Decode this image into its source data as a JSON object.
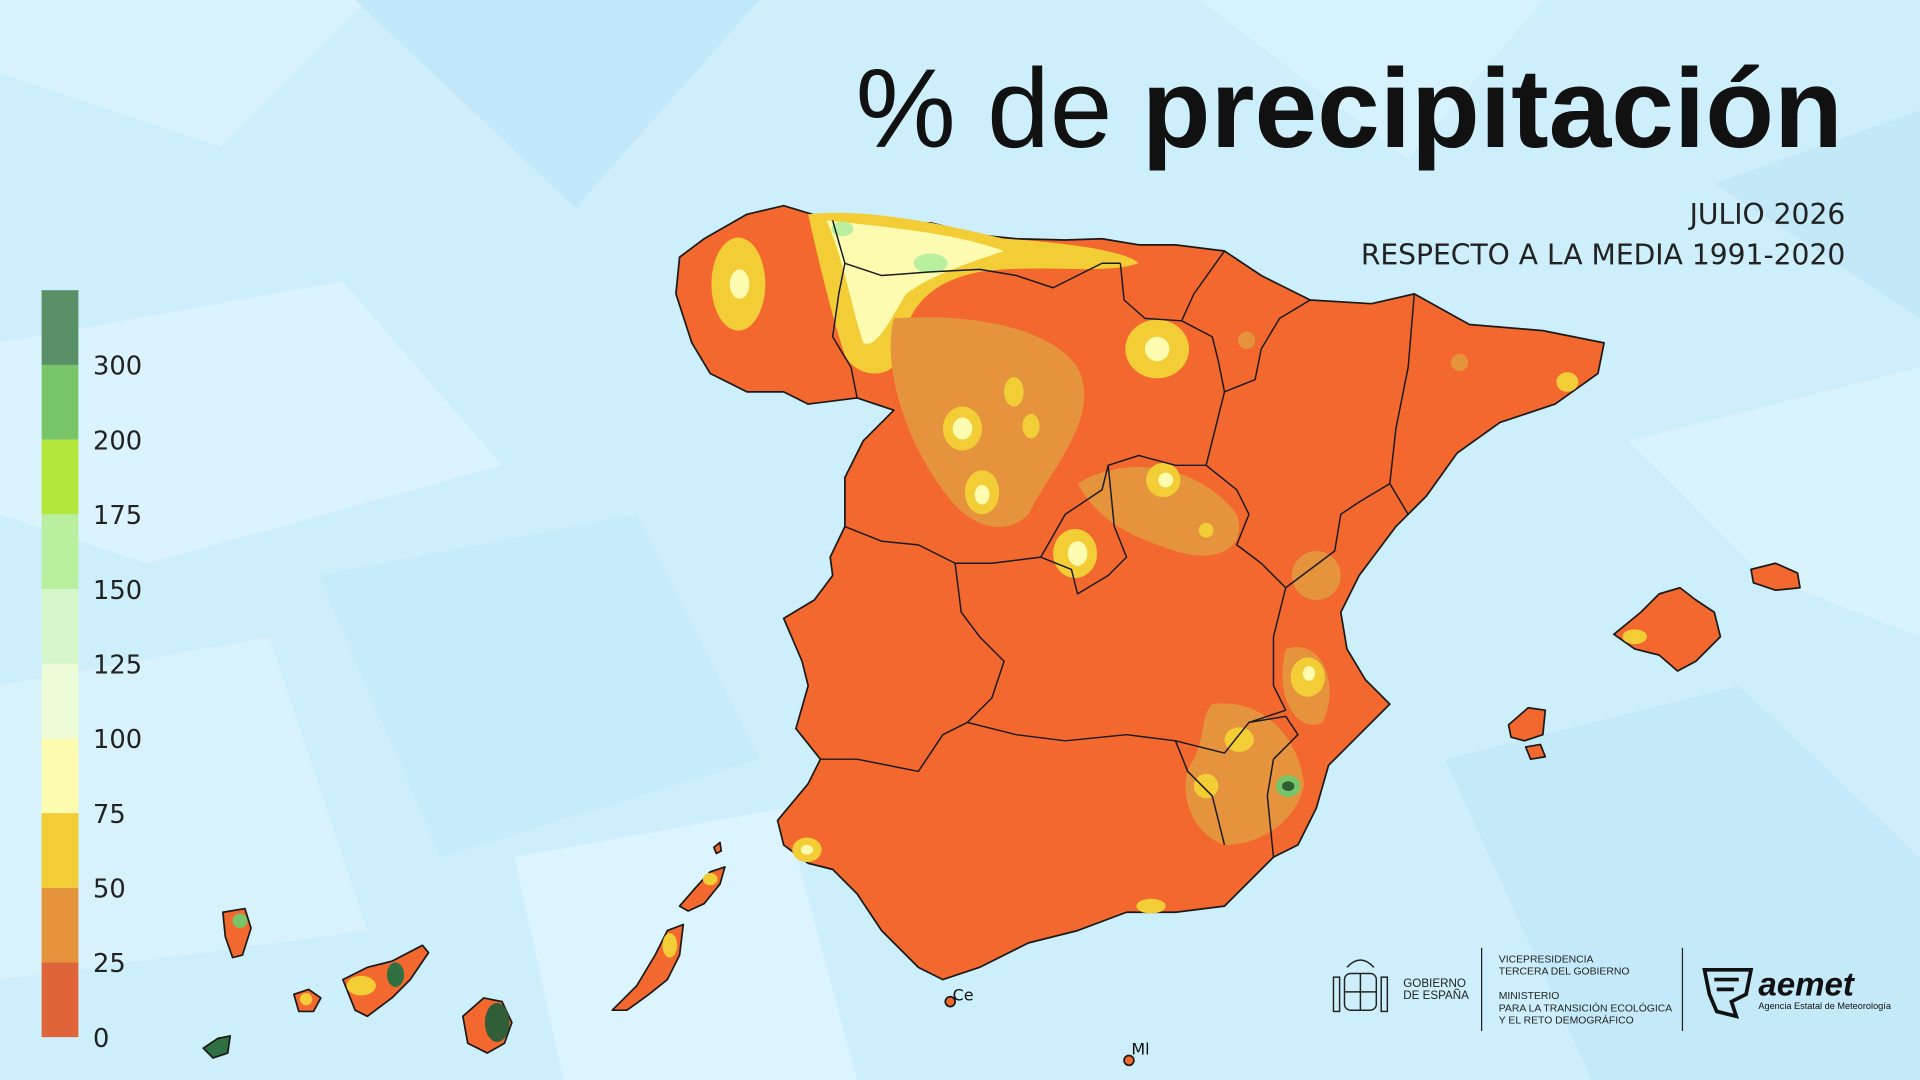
{
  "header": {
    "title_prefix": "% de",
    "title_main": "precipitación",
    "subtitle_lines": [
      "JULIO 2026",
      "RESPECTO A LA MEDIA 1991-2020"
    ]
  },
  "legend": {
    "bins": [
      {
        "value": 0,
        "color": "#e0643a"
      },
      {
        "value": 25,
        "color": "#e6933d"
      },
      {
        "value": 50,
        "color": "#f2cd35"
      },
      {
        "value": 75,
        "color": "#fdfbb0"
      },
      {
        "value": 100,
        "color": "#eefbd8"
      },
      {
        "value": 125,
        "color": "#d6f7cc"
      },
      {
        "value": 150,
        "color": "#b9f0a0"
      },
      {
        "value": 175,
        "color": "#b5e83c"
      },
      {
        "value": 200,
        "color": "#78c468"
      },
      {
        "value": 300,
        "color": "#5a9068"
      }
    ],
    "top_color": "#2f5e39"
  },
  "map": {
    "labels": [
      "Ce",
      "Ml"
    ]
  },
  "footer": {
    "gobierno": [
      "GOBIERNO",
      "DE ESPAÑA"
    ],
    "vicepresidencia": [
      "VICEPRESIDENCIA",
      "TERCERA DEL GOBIERNO"
    ],
    "ministerio": [
      "MINISTERIO",
      "PARA LA TRANSICIÓN ECOLÓGICA",
      "Y EL RETO DEMOGRÁFICO"
    ],
    "brand": "aemet",
    "agency": "Agencia Estatal de Meteorología"
  }
}
